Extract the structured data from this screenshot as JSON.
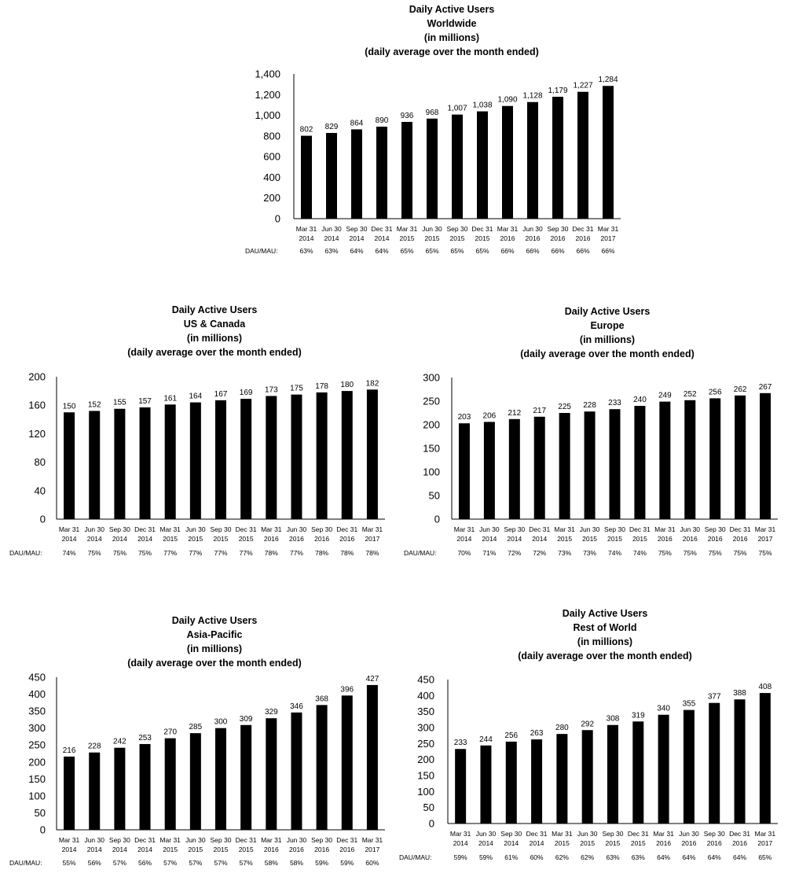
{
  "chart_data": [
    {
      "id": "worldwide",
      "type": "bar",
      "title_lines": [
        "Daily Active Users",
        "Worldwide",
        "(in millions)",
        "(daily average over the month ended)"
      ],
      "categories": [
        [
          "Mar 31",
          "2014"
        ],
        [
          "Jun 30",
          "2014"
        ],
        [
          "Sep 30",
          "2014"
        ],
        [
          "Dec 31",
          "2014"
        ],
        [
          "Mar 31",
          "2015"
        ],
        [
          "Jun 30",
          "2015"
        ],
        [
          "Sep 30",
          "2015"
        ],
        [
          "Dec 31",
          "2015"
        ],
        [
          "Mar 31",
          "2016"
        ],
        [
          "Jun 30",
          "2016"
        ],
        [
          "Sep 30",
          "2016"
        ],
        [
          "Dec 31",
          "2016"
        ],
        [
          "Mar 31",
          "2017"
        ]
      ],
      "values": [
        802,
        829,
        864,
        890,
        936,
        968,
        1007,
        1038,
        1090,
        1128,
        1179,
        1227,
        1284
      ],
      "value_labels": [
        "802",
        "829",
        "864",
        "890",
        "936",
        "968",
        "1,007",
        "1,038",
        "1,090",
        "1,128",
        "1,179",
        "1,227",
        "1,284"
      ],
      "ylim": [
        0,
        1400
      ],
      "yticks": [
        0,
        200,
        400,
        600,
        800,
        1000,
        1200,
        1400
      ],
      "ytick_labels": [
        "0",
        "200",
        "400",
        "600",
        "800",
        "1,000",
        "1,200",
        "1,400"
      ],
      "ratio_label": "DAU/MAU:",
      "ratios": [
        "63%",
        "63%",
        "64%",
        "64%",
        "65%",
        "65%",
        "65%",
        "65%",
        "66%",
        "66%",
        "66%",
        "66%",
        "66%"
      ],
      "grid": false,
      "legend": "none"
    },
    {
      "id": "us-canada",
      "type": "bar",
      "title_lines": [
        "Daily Active Users",
        "US & Canada",
        "(in millions)",
        "(daily average over the month ended)"
      ],
      "categories": [
        [
          "Mar 31",
          "2014"
        ],
        [
          "Jun 30",
          "2014"
        ],
        [
          "Sep 30",
          "2014"
        ],
        [
          "Dec 31",
          "2014"
        ],
        [
          "Mar 31",
          "2015"
        ],
        [
          "Jun 30",
          "2015"
        ],
        [
          "Sep 30",
          "2015"
        ],
        [
          "Dec 31",
          "2015"
        ],
        [
          "Mar 31",
          "2016"
        ],
        [
          "Jun 30",
          "2016"
        ],
        [
          "Sep 30",
          "2016"
        ],
        [
          "Dec 31",
          "2016"
        ],
        [
          "Mar 31",
          "2017"
        ]
      ],
      "values": [
        150,
        152,
        155,
        157,
        161,
        164,
        167,
        169,
        173,
        175,
        178,
        180,
        182
      ],
      "value_labels": [
        "150",
        "152",
        "155",
        "157",
        "161",
        "164",
        "167",
        "169",
        "173",
        "175",
        "178",
        "180",
        "182"
      ],
      "ylim": [
        0,
        200
      ],
      "yticks": [
        0,
        40,
        80,
        120,
        160,
        200
      ],
      "ytick_labels": [
        "0",
        "40",
        "80",
        "120",
        "160",
        "200"
      ],
      "ratio_label": "DAU/MAU:",
      "ratios": [
        "74%",
        "75%",
        "75%",
        "75%",
        "77%",
        "77%",
        "77%",
        "77%",
        "78%",
        "77%",
        "78%",
        "78%",
        "78%"
      ],
      "grid": false,
      "legend": "none"
    },
    {
      "id": "europe",
      "type": "bar",
      "title_lines": [
        "Daily Active Users",
        "Europe",
        "(in millions)",
        "(daily average over the month ended)"
      ],
      "categories": [
        [
          "Mar 31",
          "2014"
        ],
        [
          "Jun 30",
          "2014"
        ],
        [
          "Sep 30",
          "2014"
        ],
        [
          "Dec 31",
          "2014"
        ],
        [
          "Mar 31",
          "2015"
        ],
        [
          "Jun 30",
          "2015"
        ],
        [
          "Sep 30",
          "2015"
        ],
        [
          "Dec 31",
          "2015"
        ],
        [
          "Mar 31",
          "2016"
        ],
        [
          "Jun 30",
          "2016"
        ],
        [
          "Sep 30",
          "2016"
        ],
        [
          "Dec 31",
          "2016"
        ],
        [
          "Mar 31",
          "2017"
        ]
      ],
      "values": [
        203,
        206,
        212,
        217,
        225,
        228,
        233,
        240,
        249,
        252,
        256,
        262,
        267
      ],
      "value_labels": [
        "203",
        "206",
        "212",
        "217",
        "225",
        "228",
        "233",
        "240",
        "249",
        "252",
        "256",
        "262",
        "267"
      ],
      "ylim": [
        0,
        300
      ],
      "yticks": [
        0,
        50,
        100,
        150,
        200,
        250,
        300
      ],
      "ytick_labels": [
        "0",
        "50",
        "100",
        "150",
        "200",
        "250",
        "300"
      ],
      "ratio_label": "DAU/MAU:",
      "ratios": [
        "70%",
        "71%",
        "72%",
        "72%",
        "73%",
        "73%",
        "74%",
        "74%",
        "75%",
        "75%",
        "75%",
        "75%",
        "75%"
      ],
      "grid": false,
      "legend": "none"
    },
    {
      "id": "asia-pacific",
      "type": "bar",
      "title_lines": [
        "Daily Active Users",
        "Asia-Pacific",
        "(in millions)",
        "(daily average over the month ended)"
      ],
      "categories": [
        [
          "Mar 31",
          "2014"
        ],
        [
          "Jun 30",
          "2014"
        ],
        [
          "Sep 30",
          "2014"
        ],
        [
          "Dec 31",
          "2014"
        ],
        [
          "Mar 31",
          "2015"
        ],
        [
          "Jun 30",
          "2015"
        ],
        [
          "Sep 30",
          "2015"
        ],
        [
          "Dec 31",
          "2015"
        ],
        [
          "Mar 31",
          "2016"
        ],
        [
          "Jun 30",
          "2016"
        ],
        [
          "Sep 30",
          "2016"
        ],
        [
          "Dec 31",
          "2016"
        ],
        [
          "Mar 31",
          "2017"
        ]
      ],
      "values": [
        216,
        228,
        242,
        253,
        270,
        285,
        300,
        309,
        329,
        346,
        368,
        396,
        427
      ],
      "value_labels": [
        "216",
        "228",
        "242",
        "253",
        "270",
        "285",
        "300",
        "309",
        "329",
        "346",
        "368",
        "396",
        "427"
      ],
      "ylim": [
        0,
        450
      ],
      "yticks": [
        0,
        50,
        100,
        150,
        200,
        250,
        300,
        350,
        400,
        450
      ],
      "ytick_labels": [
        "0",
        "50",
        "100",
        "150",
        "200",
        "250",
        "300",
        "350",
        "400",
        "450"
      ],
      "ratio_label": "DAU/MAU:",
      "ratios": [
        "55%",
        "56%",
        "57%",
        "56%",
        "57%",
        "57%",
        "57%",
        "57%",
        "58%",
        "58%",
        "59%",
        "59%",
        "60%"
      ],
      "grid": false,
      "legend": "none"
    },
    {
      "id": "rest-of-world",
      "type": "bar",
      "title_lines": [
        "Daily Active Users",
        "Rest of World",
        "(in millions)",
        "(daily average over the month ended)"
      ],
      "categories": [
        [
          "Mar 31",
          "2014"
        ],
        [
          "Jun 30",
          "2014"
        ],
        [
          "Sep 30",
          "2014"
        ],
        [
          "Dec 31",
          "2014"
        ],
        [
          "Mar 31",
          "2015"
        ],
        [
          "Jun 30",
          "2015"
        ],
        [
          "Sep 30",
          "2015"
        ],
        [
          "Dec 31",
          "2015"
        ],
        [
          "Mar 31",
          "2016"
        ],
        [
          "Jun 30",
          "2016"
        ],
        [
          "Sep 30",
          "2016"
        ],
        [
          "Dec 31",
          "2016"
        ],
        [
          "Mar 31",
          "2017"
        ]
      ],
      "values": [
        233,
        244,
        256,
        263,
        280,
        292,
        308,
        319,
        340,
        355,
        377,
        388,
        408
      ],
      "value_labels": [
        "233",
        "244",
        "256",
        "263",
        "280",
        "292",
        "308",
        "319",
        "340",
        "355",
        "377",
        "388",
        "408"
      ],
      "ylim": [
        0,
        450
      ],
      "yticks": [
        0,
        50,
        100,
        150,
        200,
        250,
        300,
        350,
        400,
        450
      ],
      "ytick_labels": [
        "0",
        "50",
        "100",
        "150",
        "200",
        "250",
        "300",
        "350",
        "400",
        "450"
      ],
      "ratio_label": "DAU/MAU:",
      "ratios": [
        "59%",
        "59%",
        "61%",
        "60%",
        "62%",
        "62%",
        "63%",
        "63%",
        "64%",
        "64%",
        "64%",
        "64%",
        "65%"
      ],
      "grid": false,
      "legend": "none"
    }
  ]
}
